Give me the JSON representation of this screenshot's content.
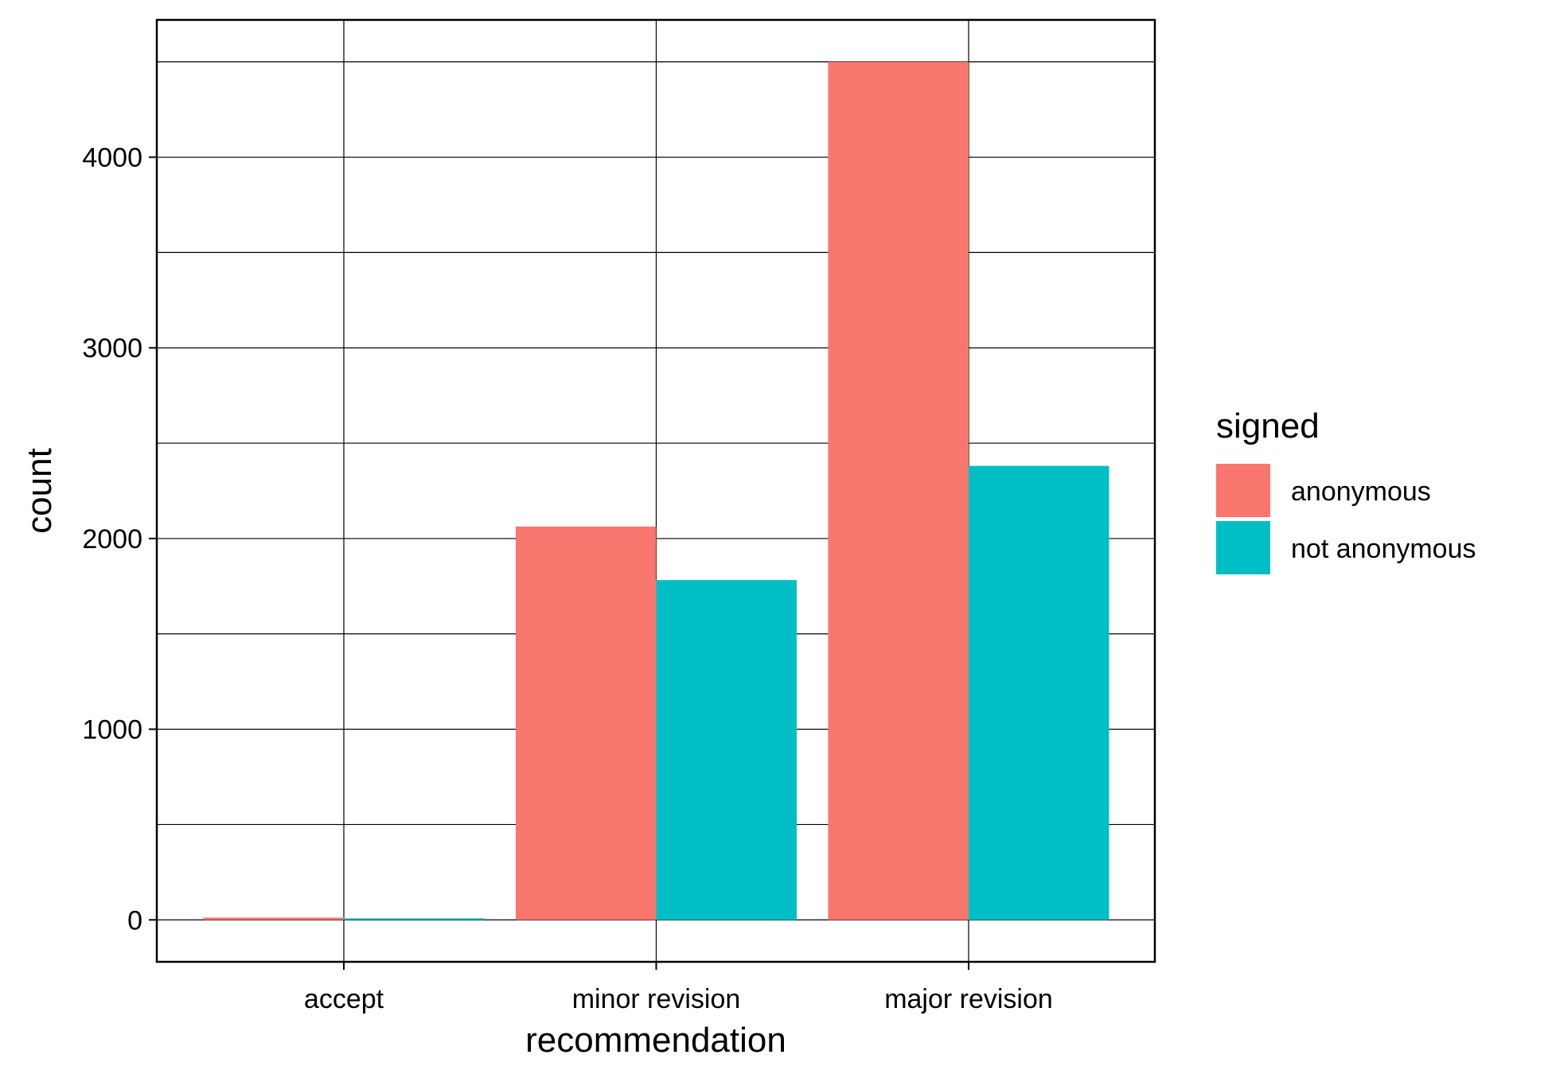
{
  "chart_data": {
    "type": "bar",
    "categories": [
      "accept",
      "minor revision",
      "major revision"
    ],
    "series": [
      {
        "name": "anonymous",
        "color": "#F8766D",
        "values": [
          12,
          2063,
          4500
        ]
      },
      {
        "name": "not anonymous",
        "color": "#00BFC4",
        "values": [
          8,
          1782,
          2381
        ]
      }
    ],
    "xlabel": "recommendation",
    "ylabel": "count",
    "ylim": [
      -220,
      4720
    ],
    "yticks": [
      0,
      1000,
      2000,
      3000,
      4000
    ],
    "ytick_labels": [
      "0",
      "1000",
      "2000",
      "3000",
      "4000"
    ],
    "legend": {
      "title": "signed",
      "position": "right"
    },
    "grid": true
  }
}
